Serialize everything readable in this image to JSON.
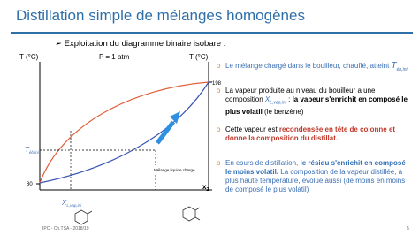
{
  "header": {
    "title": "Distillation simple de mélanges homogènes",
    "subtitle": "Exploitation du diagramme binaire isobare :"
  },
  "diagram": {
    "left_axis_label": "T (°C)",
    "pressure": "P = 1 atm",
    "right_axis_label": "T (°C)",
    "tick_high": 198,
    "tick_low": 80,
    "x_axis_label": {
      "main": "x",
      "sub": "2"
    },
    "t_label": {
      "main": "T",
      "sub": "éb,ini"
    },
    "x_label": {
      "main": "X",
      "sub": "L,vap,ini"
    },
    "annotation": "Mélange liquide chargé"
  },
  "bullets": [
    {
      "segments": [
        "Le mélange chargé dans le bouilleur, chauffé, atteint ",
        "T",
        "éb,ini"
      ]
    },
    {
      "segments": [
        "La vapeur produite au niveau du bouilleur a une composition ",
        "X",
        "L,vap,ini",
        " : ",
        "la vapeur s'enrichit en composé le plus volatil",
        " (le benzène)"
      ]
    },
    {
      "segments": [
        "Cette vapeur est ",
        "recondensée en tête de colonne et donne la composition du distillat."
      ]
    },
    {
      "segments": [
        "En cours de distillation, ",
        "le résidu s'enrichit en composé le moins volatil.",
        " La composition de la vapeur distillée, à plus haute température, évolue aussi (de moins en moins de composé le plus volatil)"
      ]
    }
  ],
  "footer": {
    "text": "IPC - Ch.TSA - 2018/19",
    "page": "5"
  }
}
